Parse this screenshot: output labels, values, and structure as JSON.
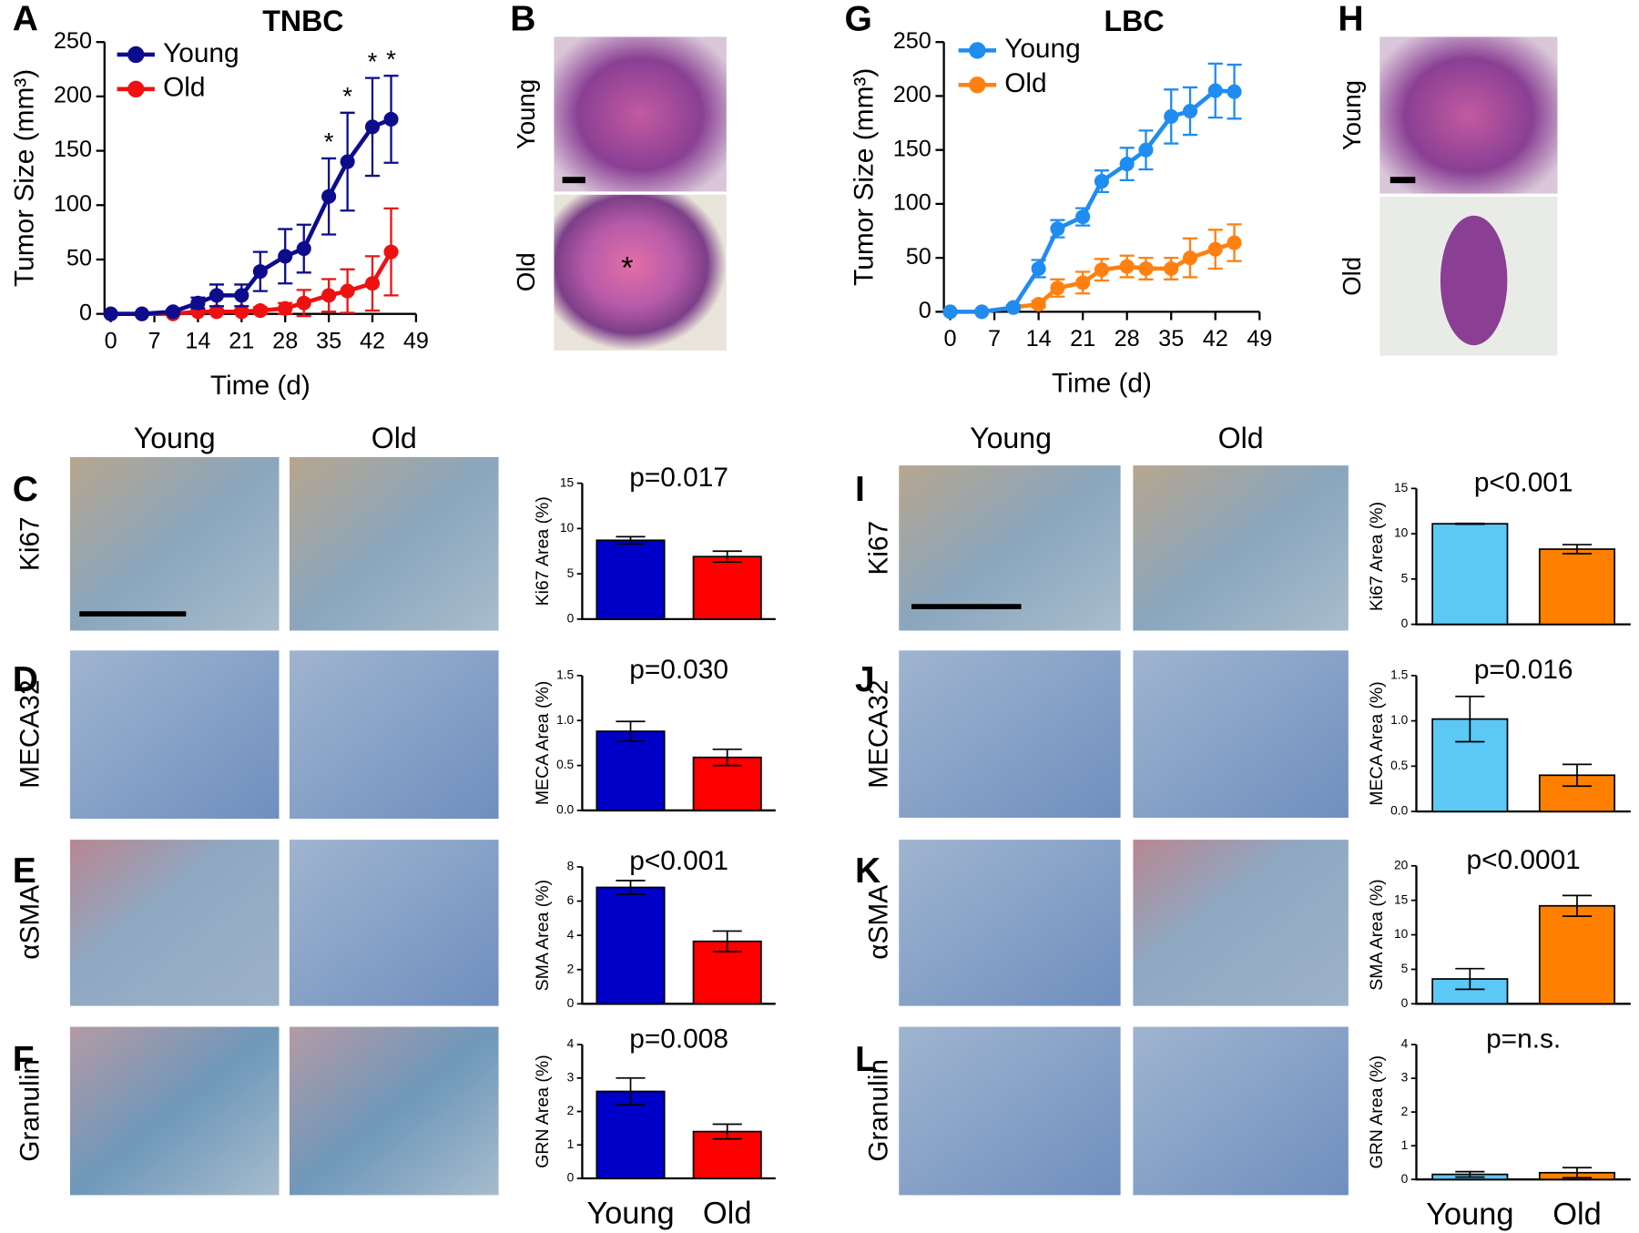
{
  "chart_data": [
    {
      "type": "line",
      "panel": "A",
      "title": "TNBC",
      "xlabel": "Time (d)",
      "ylabel": "Tumor Size (mm³)",
      "x": [
        0,
        5,
        10,
        14,
        17,
        21,
        24,
        28,
        31,
        35,
        38,
        42,
        45
      ],
      "series": [
        {
          "name": "Young",
          "color": "#0c0c8c",
          "values": [
            0,
            0,
            2,
            10,
            17,
            17,
            39,
            53,
            60,
            108,
            140,
            172,
            179
          ],
          "errors": [
            0,
            0,
            2,
            5,
            10,
            10,
            18,
            25,
            22,
            35,
            45,
            45,
            40
          ]
        },
        {
          "name": "Old",
          "color": "#ee1111",
          "values": [
            0,
            0,
            0,
            2,
            2,
            2,
            3,
            5,
            10,
            17,
            21,
            28,
            57
          ],
          "errors": [
            0,
            0,
            0,
            1,
            2,
            2,
            3,
            5,
            12,
            15,
            20,
            25,
            40
          ]
        }
      ],
      "annotations": [
        {
          "text": "*",
          "x": 35
        },
        {
          "text": "*",
          "x": 38
        },
        {
          "text": "*",
          "x": 42
        },
        {
          "text": "*",
          "x": 45
        }
      ],
      "xlim": [
        -1,
        49
      ],
      "xticks": [
        0,
        7,
        14,
        21,
        28,
        35,
        42,
        49
      ],
      "ylim": [
        0,
        250
      ],
      "yticks": [
        0,
        50,
        100,
        150,
        200,
        250
      ]
    },
    {
      "type": "line",
      "panel": "G",
      "title": "LBC",
      "xlabel": "Time (d)",
      "ylabel": "Tumor Size (mm³)",
      "x": [
        0,
        5,
        10,
        14,
        17,
        21,
        24,
        28,
        31,
        35,
        38,
        42,
        45
      ],
      "series": [
        {
          "name": "Young",
          "color": "#1f8cf0",
          "values": [
            0,
            0,
            4,
            40,
            77,
            88,
            121,
            137,
            150,
            181,
            186,
            205,
            204
          ],
          "errors": [
            0,
            0,
            2,
            8,
            8,
            8,
            10,
            15,
            18,
            25,
            22,
            25,
            25
          ]
        },
        {
          "name": "Old",
          "color": "#ff8010",
          "values": [
            0,
            0,
            4,
            7,
            22,
            27,
            39,
            42,
            40,
            40,
            50,
            58,
            64
          ],
          "errors": [
            0,
            0,
            1,
            3,
            8,
            10,
            10,
            10,
            10,
            10,
            18,
            18,
            17
          ]
        }
      ],
      "xlim": [
        -1,
        49
      ],
      "xticks": [
        0,
        7,
        14,
        21,
        28,
        35,
        42,
        49
      ],
      "ylim": [
        0,
        250
      ],
      "yticks": [
        0,
        50,
        100,
        150,
        200,
        250
      ]
    },
    {
      "type": "bar",
      "panel": "C",
      "title": "p=0.017",
      "ylabel": "Ki67 Area (%)",
      "values": [
        8.7,
        6.9
      ],
      "errors": [
        0.4,
        0.6
      ],
      "colors": [
        "#0000c8",
        "#ff0000"
      ],
      "ylim": [
        0,
        15
      ],
      "yticks": [
        0,
        5,
        10,
        15
      ]
    },
    {
      "type": "bar",
      "panel": "D",
      "title": "p=0.030",
      "ylabel": "MECA Area (%)",
      "values": [
        0.88,
        0.59
      ],
      "errors": [
        0.11,
        0.09
      ],
      "colors": [
        "#0000c8",
        "#ff0000"
      ],
      "ylim": [
        0,
        1.5
      ],
      "yticks": [
        {
          "value": 0,
          "label": "0.0"
        },
        0.5,
        {
          "value": 1,
          "label": "1.0"
        },
        1.5
      ]
    },
    {
      "type": "bar",
      "panel": "E",
      "title": "p<0.001",
      "ylabel": "SMA Area (%)",
      "values": [
        6.8,
        3.65
      ],
      "errors": [
        0.4,
        0.6
      ],
      "colors": [
        "#0000c8",
        "#ff0000"
      ],
      "ylim": [
        0,
        8
      ],
      "yticks": [
        0,
        2,
        4,
        6,
        8
      ]
    },
    {
      "type": "bar",
      "panel": "F",
      "title": "p=0.008",
      "ylabel": "GRN Area (%)",
      "categories": [
        "Young",
        "Old"
      ],
      "values": [
        2.6,
        1.4
      ],
      "errors": [
        0.4,
        0.22
      ],
      "colors": [
        "#0000c8",
        "#ff0000"
      ],
      "ylim": [
        0,
        4
      ],
      "yticks": [
        0,
        1,
        2,
        3,
        4
      ]
    },
    {
      "type": "bar",
      "panel": "I",
      "title": "p<0.001",
      "ylabel": "Ki67 Area (%)",
      "values": [
        11.1,
        8.3
      ],
      "errors": [
        0.05,
        0.5
      ],
      "colors": [
        "#5bc8f5",
        "#ff8000"
      ],
      "ylim": [
        0,
        15
      ],
      "yticks": [
        0,
        5,
        10,
        15
      ]
    },
    {
      "type": "bar",
      "panel": "J",
      "title": "p=0.016",
      "ylabel": "MECA Area (%)",
      "values": [
        1.02,
        0.4
      ],
      "errors": [
        0.25,
        0.12
      ],
      "colors": [
        "#5bc8f5",
        "#ff8000"
      ],
      "ylim": [
        0,
        1.5
      ],
      "yticks": [
        {
          "value": 0,
          "label": "0.0"
        },
        0.5,
        {
          "value": 1,
          "label": "1.0"
        },
        1.5
      ]
    },
    {
      "type": "bar",
      "panel": "K",
      "title": "p<0.0001",
      "ylabel": "SMA Area (%)",
      "values": [
        3.6,
        14.2
      ],
      "errors": [
        1.5,
        1.5
      ],
      "colors": [
        "#5bc8f5",
        "#ff8000"
      ],
      "ylim": [
        0,
        20
      ],
      "yticks": [
        0,
        5,
        10,
        15,
        20
      ]
    },
    {
      "type": "bar",
      "panel": "L",
      "title": "p=n.s.",
      "ylabel": "GRN Area (%)",
      "categories": [
        "Young",
        "Old"
      ],
      "values": [
        0.15,
        0.2
      ],
      "errors": [
        0.08,
        0.15
      ],
      "colors": [
        "#5bc8f5",
        "#ff8000"
      ],
      "ylim": [
        0,
        4
      ],
      "yticks": [
        0,
        1,
        2,
        3,
        4
      ]
    }
  ],
  "image_panels": [
    {
      "panel": "B",
      "labels": [
        "Young",
        "Old"
      ],
      "annotation": "*"
    },
    {
      "panel": "H",
      "labels": [
        "Young",
        "Old"
      ]
    }
  ],
  "ihc": [
    {
      "headers": [
        "Young",
        "Old"
      ],
      "rows": [
        "Ki67",
        "MECA32",
        "αSMA",
        "Granulin"
      ]
    },
    {
      "headers": [
        "Young",
        "Old"
      ],
      "rows": [
        "Ki67",
        "MECA32",
        "αSMA",
        "Granulin"
      ]
    }
  ]
}
